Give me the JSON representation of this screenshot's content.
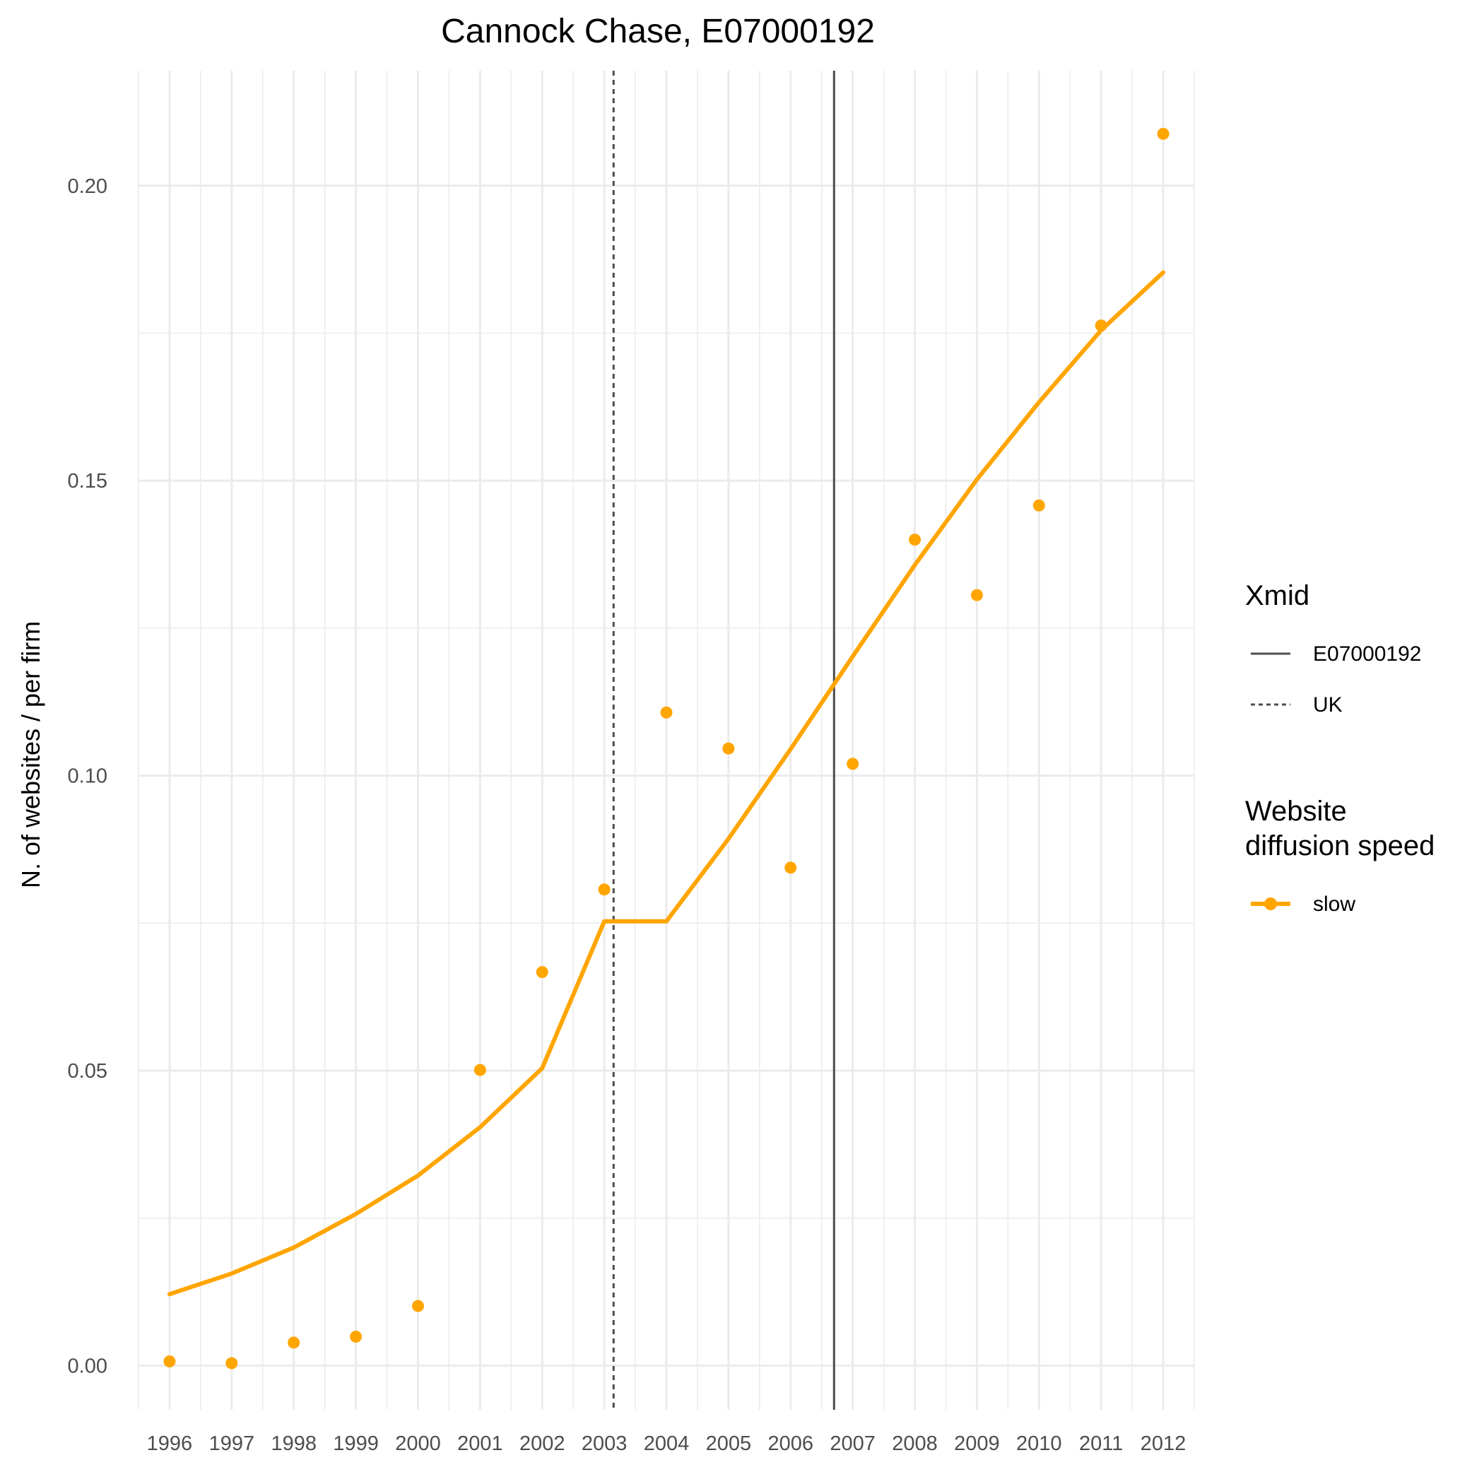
{
  "chart_data": {
    "type": "line",
    "title": "Cannock Chase, E07000192",
    "xlabel": "",
    "ylabel": "N. of websites / per firm",
    "x": [
      1996,
      1997,
      1998,
      1999,
      2000,
      2001,
      2002,
      2003,
      2004,
      2005,
      2006,
      2007,
      2008,
      2009,
      2010,
      2011,
      2012
    ],
    "x_tick_labels": [
      "1996",
      "1997",
      "1998",
      "1999",
      "2000",
      "2001",
      "2002",
      "2003",
      "2004",
      "2005",
      "2006",
      "2007",
      "2008",
      "2009",
      "2010",
      "2011",
      "2012"
    ],
    "y_tick_values": [
      0.0,
      0.05,
      0.1,
      0.15,
      0.2
    ],
    "y_tick_labels": [
      "0.00",
      "0.05",
      "0.10",
      "0.15",
      "0.20"
    ],
    "xlim": [
      1995.5,
      2012.5
    ],
    "ylim": [
      -0.0075,
      0.2195
    ],
    "grid": true,
    "series": [
      {
        "name": "slow",
        "kind": "points",
        "color": "#FFA500",
        "values": [
          0.0007,
          0.0004,
          0.0039,
          0.0049,
          0.0101,
          0.0501,
          0.0667,
          0.0807,
          0.1107,
          0.1046,
          0.0844,
          0.102,
          0.14,
          0.1306,
          0.1458,
          0.1763,
          0.2088
        ]
      },
      {
        "name": "slow",
        "kind": "fitted-line",
        "color": "#FFA500",
        "values": [
          0.0121,
          0.0156,
          0.02,
          0.0257,
          0.0322,
          0.0404,
          0.0504,
          0.0753,
          0.0753,
          0.0893,
          0.1045,
          0.1202,
          0.1357,
          0.1502,
          0.1633,
          0.1755,
          0.1853
        ]
      }
    ],
    "reference_lines": [
      {
        "name": "E07000192",
        "x": 2006.7,
        "style": "solid",
        "color": "#4d4d4d"
      },
      {
        "name": "UK",
        "x": 2003.15,
        "style": "dashed",
        "color": "#4d4d4d"
      }
    ],
    "legend": {
      "placement": "right",
      "groups": [
        {
          "title": "Xmid",
          "items": [
            {
              "label": "E07000192",
              "style": "solid"
            },
            {
              "label": "UK",
              "style": "dashed"
            }
          ]
        },
        {
          "title_lines": [
            "Website",
            "diffusion speed"
          ],
          "items": [
            {
              "label": "slow",
              "style": "line-point",
              "color": "#FFA500"
            }
          ]
        }
      ]
    },
    "colors": {
      "series": "#FFA500",
      "reference": "#4d4d4d",
      "grid": "#ebebeb"
    }
  }
}
